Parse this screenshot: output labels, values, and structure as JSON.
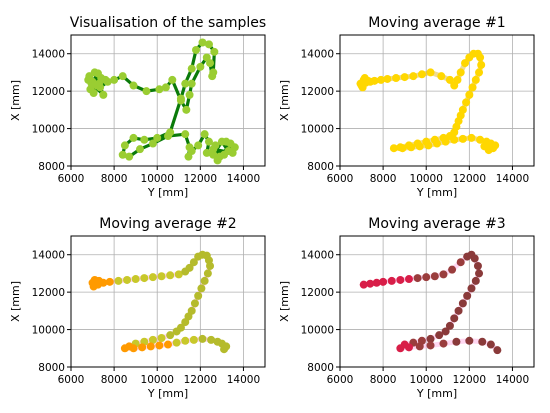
{
  "chart_data": [
    {
      "type": "scatter",
      "title": "Visualisation of the samples",
      "xlabel": "Y [mm]",
      "ylabel": "X [mm]",
      "xlim": [
        6000,
        15000
      ],
      "ylim": [
        8000,
        15000
      ],
      "xticks": [
        "6000",
        "8000",
        "10000",
        "12000",
        "14000"
      ],
      "yticks": [
        "8000",
        "10000",
        "12000",
        "14000"
      ],
      "grid": true,
      "line_color": "#0a7a0a",
      "marker_color": "#9acd32",
      "series": [
        {
          "x": [
            7000,
            6850,
            7200,
            6900,
            7400,
            7050,
            7600,
            7250,
            6950,
            7700,
            7350,
            7100,
            7500,
            6800,
            7300,
            8000,
            8400,
            8900,
            9500,
            10100,
            10400,
            10700,
            11100,
            11350,
            11500,
            11600,
            12000,
            12300,
            12450,
            12550,
            12600,
            12650,
            12400,
            12100,
            11800,
            11600,
            11300,
            11100,
            10600,
            10000,
            9400,
            8900,
            8500,
            8400,
            8700,
            9200,
            9800,
            10500,
            11300,
            11500,
            11450,
            11600,
            11900,
            12200,
            12400,
            12300,
            12600,
            13000,
            13300,
            13600,
            12900,
            12700,
            13200,
            13500,
            12600,
            13100,
            13400,
            12800
          ],
          "y": [
            12500,
            12800,
            12300,
            12100,
            12700,
            11900,
            12600,
            12950,
            12400,
            12500,
            12200,
            13000,
            11800,
            12600,
            12400,
            12600,
            12800,
            12300,
            12000,
            12100,
            12200,
            12600,
            11500,
            11000,
            11800,
            12400,
            13300,
            13800,
            13500,
            12800,
            13000,
            14100,
            14500,
            14600,
            14200,
            13200,
            12400,
            11600,
            9800,
            9500,
            9400,
            9500,
            9100,
            8600,
            8500,
            8900,
            9200,
            9600,
            9700,
            9000,
            8500,
            8800,
            9100,
            9700,
            9300,
            8700,
            8600,
            9300,
            8800,
            9000,
            8500,
            9100,
            9300,
            8700,
            8900,
            8600,
            9200,
            8300
          ]
        }
      ]
    },
    {
      "type": "scatter",
      "title": "Moving average #1",
      "xlabel": "Y [mm]",
      "ylabel": "X [mm]",
      "xlim": [
        6000,
        15000
      ],
      "ylim": [
        8000,
        15000
      ],
      "xticks": [
        "6000",
        "8000",
        "10000",
        "12000",
        "14000"
      ],
      "yticks": [
        "8000",
        "10000",
        "12000",
        "14000"
      ],
      "grid": true,
      "line_color": "#e2bd3a",
      "marker_color": "#ffd700",
      "series": [
        {
          "x": [
            7000,
            7100,
            7200,
            7050,
            7300,
            7150,
            6950,
            7400,
            7600,
            7900,
            8200,
            8600,
            9000,
            9400,
            9800,
            10200,
            10700,
            11100,
            11300,
            11450,
            11600,
            11800,
            12000,
            12200,
            12400,
            12500,
            12550,
            12450,
            12300,
            12150,
            12000,
            11850,
            11700,
            11600,
            11500,
            11400,
            11300,
            11100,
            10800,
            10400,
            10000,
            9600,
            9200,
            8800,
            8500,
            8900,
            9300,
            9700,
            10100,
            10500,
            10900,
            11300,
            11700,
            12100,
            12500,
            12800,
            13000,
            13200,
            13100,
            12900,
            12700
          ],
          "y": [
            12300,
            12600,
            12450,
            12200,
            12550,
            12700,
            12400,
            12500,
            12550,
            12600,
            12650,
            12700,
            12750,
            12800,
            12900,
            13000,
            12800,
            12600,
            12300,
            12600,
            13000,
            13500,
            13800,
            14000,
            14000,
            13800,
            13400,
            13000,
            12600,
            12200,
            11800,
            11400,
            11000,
            10700,
            10400,
            10100,
            9800,
            9600,
            9500,
            9400,
            9300,
            9200,
            9100,
            9000,
            8950,
            8950,
            9000,
            9050,
            9100,
            9200,
            9300,
            9400,
            9450,
            9500,
            9400,
            9300,
            9200,
            9100,
            8950,
            8850,
            9050
          ]
        }
      ]
    },
    {
      "type": "scatter",
      "title": "Moving average #2",
      "xlabel": "Y [mm]",
      "ylabel": "X [mm]",
      "xlim": [
        6000,
        15000
      ],
      "ylim": [
        8000,
        15000
      ],
      "xticks": [
        "6000",
        "8000",
        "10000",
        "12000",
        "14000"
      ],
      "yticks": [
        "8000",
        "10000",
        "12000",
        "14000"
      ],
      "grid": true,
      "line_color": "#ffb6e6",
      "marker_colors": [
        "#ff9a00",
        "#c8c82a",
        "#b5bb2c"
      ],
      "series": [
        {
          "x": [
            7000,
            7100,
            7250,
            7050,
            7300,
            7500,
            7800,
            8200,
            8600,
            9000,
            9400,
            9800,
            10200,
            10600,
            11000,
            11300,
            11500,
            11700,
            11900,
            12100,
            12300,
            12400,
            12450,
            12350,
            12200,
            12050,
            11900,
            11750,
            11600,
            11450,
            11300,
            11100,
            10900,
            10600,
            10200,
            9800,
            9400,
            9000,
            8700,
            8500,
            8900,
            9300,
            9700,
            10100,
            10500,
            10900,
            11300,
            11700,
            12100,
            12500,
            12800,
            13000,
            13200,
            13100
          ],
          "y": [
            12500,
            12650,
            12400,
            12300,
            12600,
            12500,
            12550,
            12600,
            12650,
            12700,
            12750,
            12800,
            12850,
            12900,
            12950,
            13100,
            13300,
            13600,
            13900,
            14000,
            13950,
            13700,
            13400,
            13000,
            12600,
            12200,
            11800,
            11400,
            11000,
            10700,
            10400,
            10100,
            9900,
            9700,
            9550,
            9450,
            9350,
            9250,
            9100,
            9000,
            9000,
            9050,
            9100,
            9150,
            9200,
            9300,
            9400,
            9450,
            9500,
            9450,
            9350,
            9250,
            9100,
            8950
          ],
          "colors": [
            0,
            0,
            0,
            0,
            0,
            0,
            0,
            1,
            1,
            1,
            1,
            1,
            1,
            1,
            1,
            2,
            2,
            2,
            2,
            2,
            2,
            2,
            2,
            2,
            2,
            2,
            2,
            2,
            2,
            2,
            2,
            2,
            2,
            2,
            1,
            1,
            1,
            1,
            0,
            0,
            0,
            0,
            0,
            0,
            0,
            1,
            1,
            1,
            2,
            2,
            2,
            2,
            2,
            2
          ]
        }
      ]
    },
    {
      "type": "scatter",
      "title": "Moving average #3",
      "xlabel": "Y [mm]",
      "ylabel": "X [mm]",
      "xlim": [
        6000,
        15000
      ],
      "ylim": [
        8000,
        15000
      ],
      "xticks": [
        "6000",
        "8000",
        "10000",
        "12000",
        "14000"
      ],
      "yticks": [
        "8000",
        "10000",
        "12000",
        "14000"
      ],
      "grid": true,
      "line_color": "#ffb6e6",
      "marker_colors": [
        "#d81e48",
        "#9a3d3d",
        "#8a3a3a"
      ],
      "series": [
        {
          "x": [
            7100,
            7400,
            7700,
            8000,
            8400,
            8800,
            9200,
            9600,
            10000,
            10400,
            10800,
            11200,
            11600,
            11900,
            12100,
            12250,
            12400,
            12450,
            12300,
            12100,
            11900,
            11700,
            11500,
            11300,
            11100,
            10900,
            10600,
            10200,
            9800,
            9400,
            9000,
            8800,
            9200,
            9700,
            10200,
            10800,
            11400,
            12000,
            12600,
            13000,
            13300
          ],
          "y": [
            12400,
            12450,
            12500,
            12550,
            12600,
            12650,
            12700,
            12750,
            12800,
            12850,
            12950,
            13200,
            13600,
            13900,
            14000,
            13800,
            13400,
            13000,
            12600,
            12200,
            11800,
            11400,
            11000,
            10600,
            10200,
            9900,
            9700,
            9500,
            9400,
            9300,
            9200,
            9000,
            9050,
            9100,
            9150,
            9250,
            9350,
            9400,
            9350,
            9200,
            8900
          ],
          "colors": [
            0,
            0,
            0,
            0,
            0,
            0,
            0,
            1,
            1,
            1,
            1,
            1,
            1,
            2,
            2,
            2,
            2,
            2,
            2,
            2,
            2,
            2,
            2,
            2,
            2,
            2,
            2,
            2,
            1,
            1,
            0,
            0,
            0,
            1,
            1,
            1,
            2,
            2,
            2,
            2,
            2
          ]
        }
      ]
    }
  ]
}
